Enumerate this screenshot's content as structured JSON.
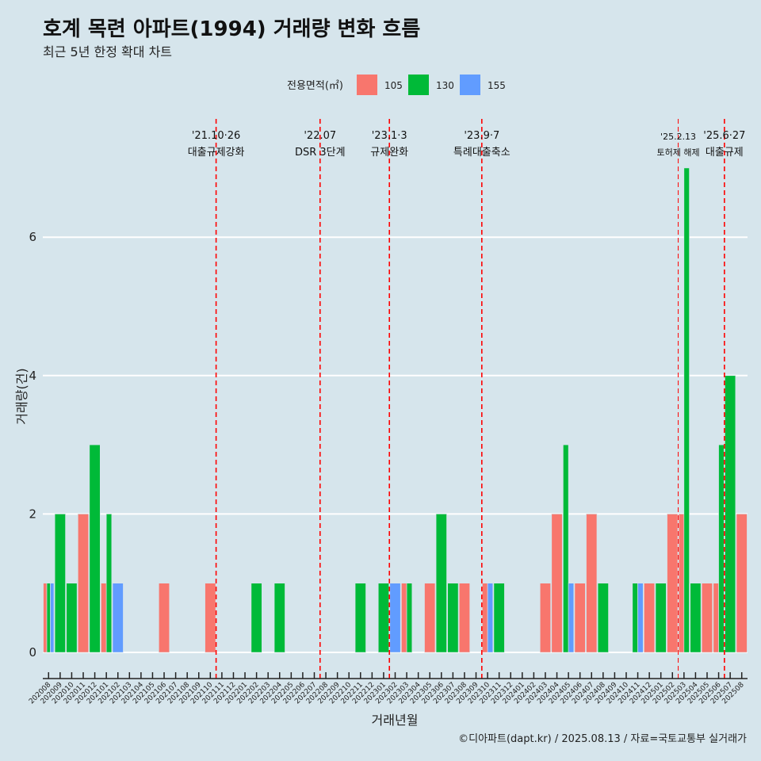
{
  "title": "호계 목련 아파트(1994) 거래량 변화 흐름",
  "subtitle": "최근 5년 한정 확대 차트",
  "caption": "©디아파트(dapt.kr) / 2025.08.13 / 자료=국토교통부 실거래가",
  "chart_data": {
    "type": "bar",
    "xlabel": "거래년월",
    "ylabel": "거래량(건)",
    "ylim": [
      0,
      7
    ],
    "yticks": [
      0,
      2,
      4,
      6
    ],
    "legend": {
      "title": "전용면적(㎡)",
      "position": "top",
      "entries": [
        {
          "label": "105",
          "color": "#f8766d"
        },
        {
          "label": "130",
          "color": "#00ba38"
        },
        {
          "label": "155",
          "color": "#619cff"
        }
      ]
    },
    "categories": [
      "202008",
      "202009",
      "202010",
      "202011",
      "202012",
      "202101",
      "202102",
      "202103",
      "202104",
      "202105",
      "202106",
      "202107",
      "202108",
      "202109",
      "202110",
      "202111",
      "202112",
      "202201",
      "202202",
      "202203",
      "202204",
      "202205",
      "202206",
      "202207",
      "202208",
      "202209",
      "202210",
      "202211",
      "202212",
      "202301",
      "202302",
      "202303",
      "202304",
      "202305",
      "202306",
      "202307",
      "202308",
      "202309",
      "202310",
      "202311",
      "202312",
      "202401",
      "202402",
      "202403",
      "202404",
      "202405",
      "202406",
      "202407",
      "202408",
      "202409",
      "202410",
      "202411",
      "202412",
      "202501",
      "202502",
      "202503",
      "202504",
      "202505",
      "202506",
      "202507",
      "202508"
    ],
    "series": [
      {
        "name": "105",
        "color": "#f8766d",
        "values": [
          1,
          0,
          0,
          2,
          0,
          1,
          0,
          0,
          0,
          0,
          1,
          0,
          0,
          0,
          1,
          0,
          0,
          0,
          0,
          0,
          0,
          0,
          0,
          0,
          0,
          0,
          0,
          0,
          0,
          0,
          0,
          1,
          0,
          1,
          0,
          0,
          1,
          0,
          1,
          0,
          0,
          0,
          0,
          1,
          2,
          0,
          1,
          2,
          0,
          0,
          0,
          0,
          1,
          0,
          2,
          2,
          0,
          1,
          1,
          0,
          2
        ]
      },
      {
        "name": "130",
        "color": "#00ba38",
        "values": [
          1,
          2,
          1,
          0,
          3,
          2,
          0,
          0,
          0,
          0,
          0,
          0,
          0,
          0,
          0,
          0,
          0,
          0,
          1,
          0,
          1,
          0,
          0,
          0,
          0,
          0,
          0,
          1,
          0,
          1,
          0,
          1,
          0,
          0,
          2,
          1,
          0,
          0,
          0,
          1,
          0,
          0,
          0,
          0,
          0,
          3,
          0,
          0,
          1,
          0,
          0,
          1,
          0,
          1,
          0,
          7,
          1,
          0,
          3,
          4,
          0
        ]
      },
      {
        "name": "155",
        "color": "#619cff",
        "values": [
          1,
          0,
          0,
          0,
          0,
          0,
          1,
          0,
          0,
          0,
          0,
          0,
          0,
          0,
          0,
          0,
          0,
          0,
          0,
          0,
          0,
          0,
          0,
          0,
          0,
          0,
          0,
          0,
          0,
          0,
          1,
          0,
          0,
          0,
          0,
          0,
          0,
          0,
          1,
          0,
          0,
          0,
          0,
          0,
          0,
          1,
          0,
          0,
          0,
          0,
          0,
          1,
          0,
          0,
          0,
          0,
          0,
          0,
          0,
          0,
          0
        ]
      }
    ],
    "events": [
      {
        "date": "'21.10·26",
        "label": "대출규제강화",
        "after": "202110",
        "small": false
      },
      {
        "date": "'22.07",
        "label": "DSR 3단계",
        "after": "202207",
        "small": false
      },
      {
        "date": "'23.1·3",
        "label": "규제완화",
        "after": "202301",
        "small": false
      },
      {
        "date": "'23.9·7",
        "label": "특례대출축소",
        "after": "202309",
        "small": false
      },
      {
        "date": "'25.2.13",
        "label": "토허제 해제",
        "after": "202502",
        "small": true
      },
      {
        "date": "'25.6·27",
        "label": "대출규제",
        "after": "202506",
        "small": false
      }
    ],
    "event_line_color": "#ff0000"
  }
}
